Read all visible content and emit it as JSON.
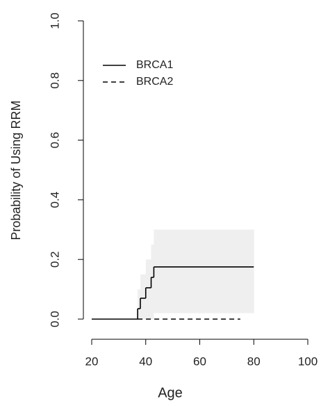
{
  "chart_data": {
    "type": "step",
    "xlabel": "Age",
    "ylabel": "Probability of Using RRM",
    "xlim": [
      20,
      100
    ],
    "xticks": [
      20,
      40,
      60,
      80,
      100
    ],
    "ylim": [
      0,
      1
    ],
    "yticks": [
      {
        "value": 0,
        "label": "0.0"
      },
      0.2,
      0.4,
      0.6,
      0.8,
      {
        "value": 1,
        "label": "1.0"
      }
    ],
    "legend": "top-left",
    "series": [
      {
        "name": "BRCA1",
        "color": "#000000",
        "dash": "solid",
        "x": [
          20,
          37,
          38,
          40,
          42,
          43,
          80
        ],
        "values": [
          0,
          0.035,
          0.07,
          0.105,
          0.14,
          0.175,
          0.175
        ],
        "band": {
          "color": "#efefef",
          "x": [
            37,
            38,
            40,
            42,
            43,
            80
          ],
          "lower": [
            0,
            0,
            0,
            0,
            0.02,
            0.02
          ],
          "upper": [
            0.1,
            0.15,
            0.2,
            0.25,
            0.3,
            0.3
          ]
        }
      },
      {
        "name": "BRCA2",
        "color": "#000000",
        "dash": "dashed",
        "x": [
          37,
          75
        ],
        "values": [
          0,
          0
        ]
      }
    ]
  }
}
